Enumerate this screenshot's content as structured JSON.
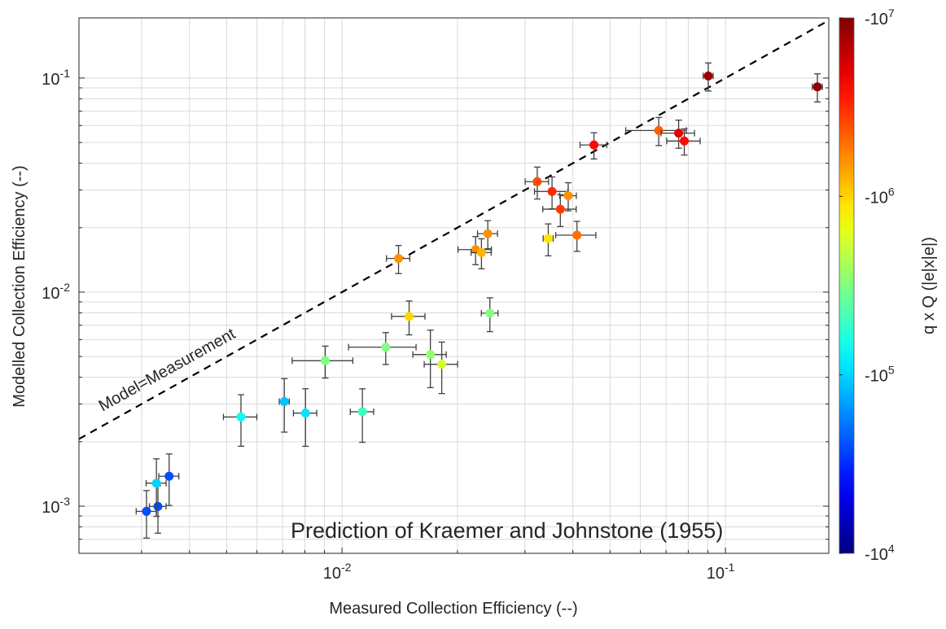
{
  "chart_data": {
    "type": "scatter",
    "xscale": "log",
    "yscale": "log",
    "xlabel": "Measured Collection Efficiency (--)",
    "ylabel": "Modelled Collection Efficiency (--)",
    "xlim": [
      0.00206,
      0.186
    ],
    "ylim": [
      0.000602,
      0.191
    ],
    "grid": true,
    "x_ticks": [
      {
        "value": 0.01,
        "base": "10",
        "exp": "-2"
      },
      {
        "value": 0.1,
        "base": "10",
        "exp": "-1"
      }
    ],
    "y_ticks": [
      {
        "value": 0.001,
        "base": "10",
        "exp": "-3"
      },
      {
        "value": 0.01,
        "base": "10",
        "exp": "-2"
      },
      {
        "value": 0.1,
        "base": "10",
        "exp": "-1"
      }
    ],
    "reference_line": {
      "label": "Model=Measurement",
      "style": "dashed",
      "color": "#000000"
    },
    "annotation": "Prediction of Kraemer and Johnstone (1955)",
    "colorbar": {
      "label": "q x Q (|e|x|e|)",
      "colormap": "jet",
      "log10_range": [
        4,
        7
      ],
      "ticks": [
        {
          "log10": 7,
          "base": "-10",
          "exp": "7"
        },
        {
          "log10": 6,
          "base": "-10",
          "exp": "6"
        },
        {
          "log10": 5,
          "base": "-10",
          "exp": "5"
        },
        {
          "log10": 4,
          "base": "-10",
          "exp": "4"
        }
      ]
    },
    "errorbar_color": "#404040",
    "points": [
      {
        "x": 0.00309,
        "y": 0.000946,
        "xerr_rel": 0.06,
        "yerr_rel": 0.25,
        "c_log10": 4.6
      },
      {
        "x": 0.00331,
        "y": 0.000997,
        "xerr_rel": 0.05,
        "yerr_rel": 0.25,
        "c_log10": 4.6
      },
      {
        "x": 0.00328,
        "y": 0.00128,
        "xerr_rel": 0.06,
        "yerr_rel": 0.3,
        "c_log10": 5.0
      },
      {
        "x": 0.00354,
        "y": 0.00138,
        "xerr_rel": 0.06,
        "yerr_rel": 0.27,
        "c_log10": 4.6
      },
      {
        "x": 0.00545,
        "y": 0.00261,
        "xerr_rel": 0.1,
        "yerr_rel": 0.27,
        "c_log10": 5.15
      },
      {
        "x": 0.00707,
        "y": 0.00308,
        "xerr_rel": 0.03,
        "yerr_rel": 0.28,
        "c_log10": 4.95
      },
      {
        "x": 0.00803,
        "y": 0.00272,
        "xerr_rel": 0.07,
        "yerr_rel": 0.3,
        "c_log10": 5.05
      },
      {
        "x": 0.0113,
        "y": 0.00276,
        "xerr_rel": 0.07,
        "yerr_rel": 0.28,
        "c_log10": 5.3
      },
      {
        "x": 0.00904,
        "y": 0.00478,
        "xerr_rel": 0.18,
        "yerr_rel": 0.17,
        "c_log10": 5.5
      },
      {
        "x": 0.013,
        "y": 0.00553,
        "xerr_rel": 0.2,
        "yerr_rel": 0.17,
        "c_log10": 5.5
      },
      {
        "x": 0.017,
        "y": 0.00511,
        "xerr_rel": 0.1,
        "yerr_rel": 0.3,
        "c_log10": 5.55
      },
      {
        "x": 0.0182,
        "y": 0.0046,
        "xerr_rel": 0.1,
        "yerr_rel": 0.27,
        "c_log10": 5.75
      },
      {
        "x": 0.01404,
        "y": 0.01436,
        "xerr_rel": 0.07,
        "yerr_rel": 0.15,
        "c_log10": 6.2
      },
      {
        "x": 0.0223,
        "y": 0.0158,
        "xerr_rel": 0.1,
        "yerr_rel": 0.15,
        "c_log10": 6.2
      },
      {
        "x": 0.0231,
        "y": 0.0153,
        "xerr_rel": 0.06,
        "yerr_rel": 0.16,
        "c_log10": 6.1
      },
      {
        "x": 0.024,
        "y": 0.01875,
        "xerr_rel": 0.06,
        "yerr_rel": 0.15,
        "c_log10": 6.2
      },
      {
        "x": 0.0345,
        "y": 0.0178,
        "xerr_rel": 0.03,
        "yerr_rel": 0.17,
        "c_log10": 5.95
      },
      {
        "x": 0.041,
        "y": 0.01845,
        "xerr_rel": 0.12,
        "yerr_rel": 0.16,
        "c_log10": 6.3
      },
      {
        "x": 0.0323,
        "y": 0.0328,
        "xerr_rel": 0.07,
        "yerr_rel": 0.17,
        "c_log10": 6.4
      },
      {
        "x": 0.0353,
        "y": 0.0295,
        "xerr_rel": 0.1,
        "yerr_rel": 0.17,
        "c_log10": 6.5
      },
      {
        "x": 0.0389,
        "y": 0.0282,
        "xerr_rel": 0.05,
        "yerr_rel": 0.15,
        "c_log10": 6.2
      },
      {
        "x": 0.0371,
        "y": 0.0244,
        "xerr_rel": 0.1,
        "yerr_rel": 0.17,
        "c_log10": 6.45
      },
      {
        "x": 0.0454,
        "y": 0.0487,
        "xerr_rel": 0.08,
        "yerr_rel": 0.14,
        "c_log10": 6.6
      },
      {
        "x": 0.067,
        "y": 0.0569,
        "xerr_rel": 0.18,
        "yerr_rel": 0.15,
        "c_log10": 6.35
      },
      {
        "x": 0.0755,
        "y": 0.0553,
        "xerr_rel": 0.1,
        "yerr_rel": 0.15,
        "c_log10": 6.7
      },
      {
        "x": 0.0781,
        "y": 0.0508,
        "xerr_rel": 0.1,
        "yerr_rel": 0.14,
        "c_log10": 6.6
      },
      {
        "x": 0.0902,
        "y": 0.1023,
        "xerr_rel": 0.03,
        "yerr_rel": 0.15,
        "c_log10": 6.9
      },
      {
        "x": 0.1737,
        "y": 0.091,
        "xerr_rel": 0.03,
        "yerr_rel": 0.15,
        "c_log10": 6.95
      },
      {
        "x": 0.01496,
        "y": 0.0077,
        "xerr_rel": 0.1,
        "yerr_rel": 0.18,
        "c_log10": 6.0
      },
      {
        "x": 0.0243,
        "y": 0.00797,
        "xerr_rel": 0.05,
        "yerr_rel": 0.18,
        "c_log10": 5.5
      }
    ]
  }
}
